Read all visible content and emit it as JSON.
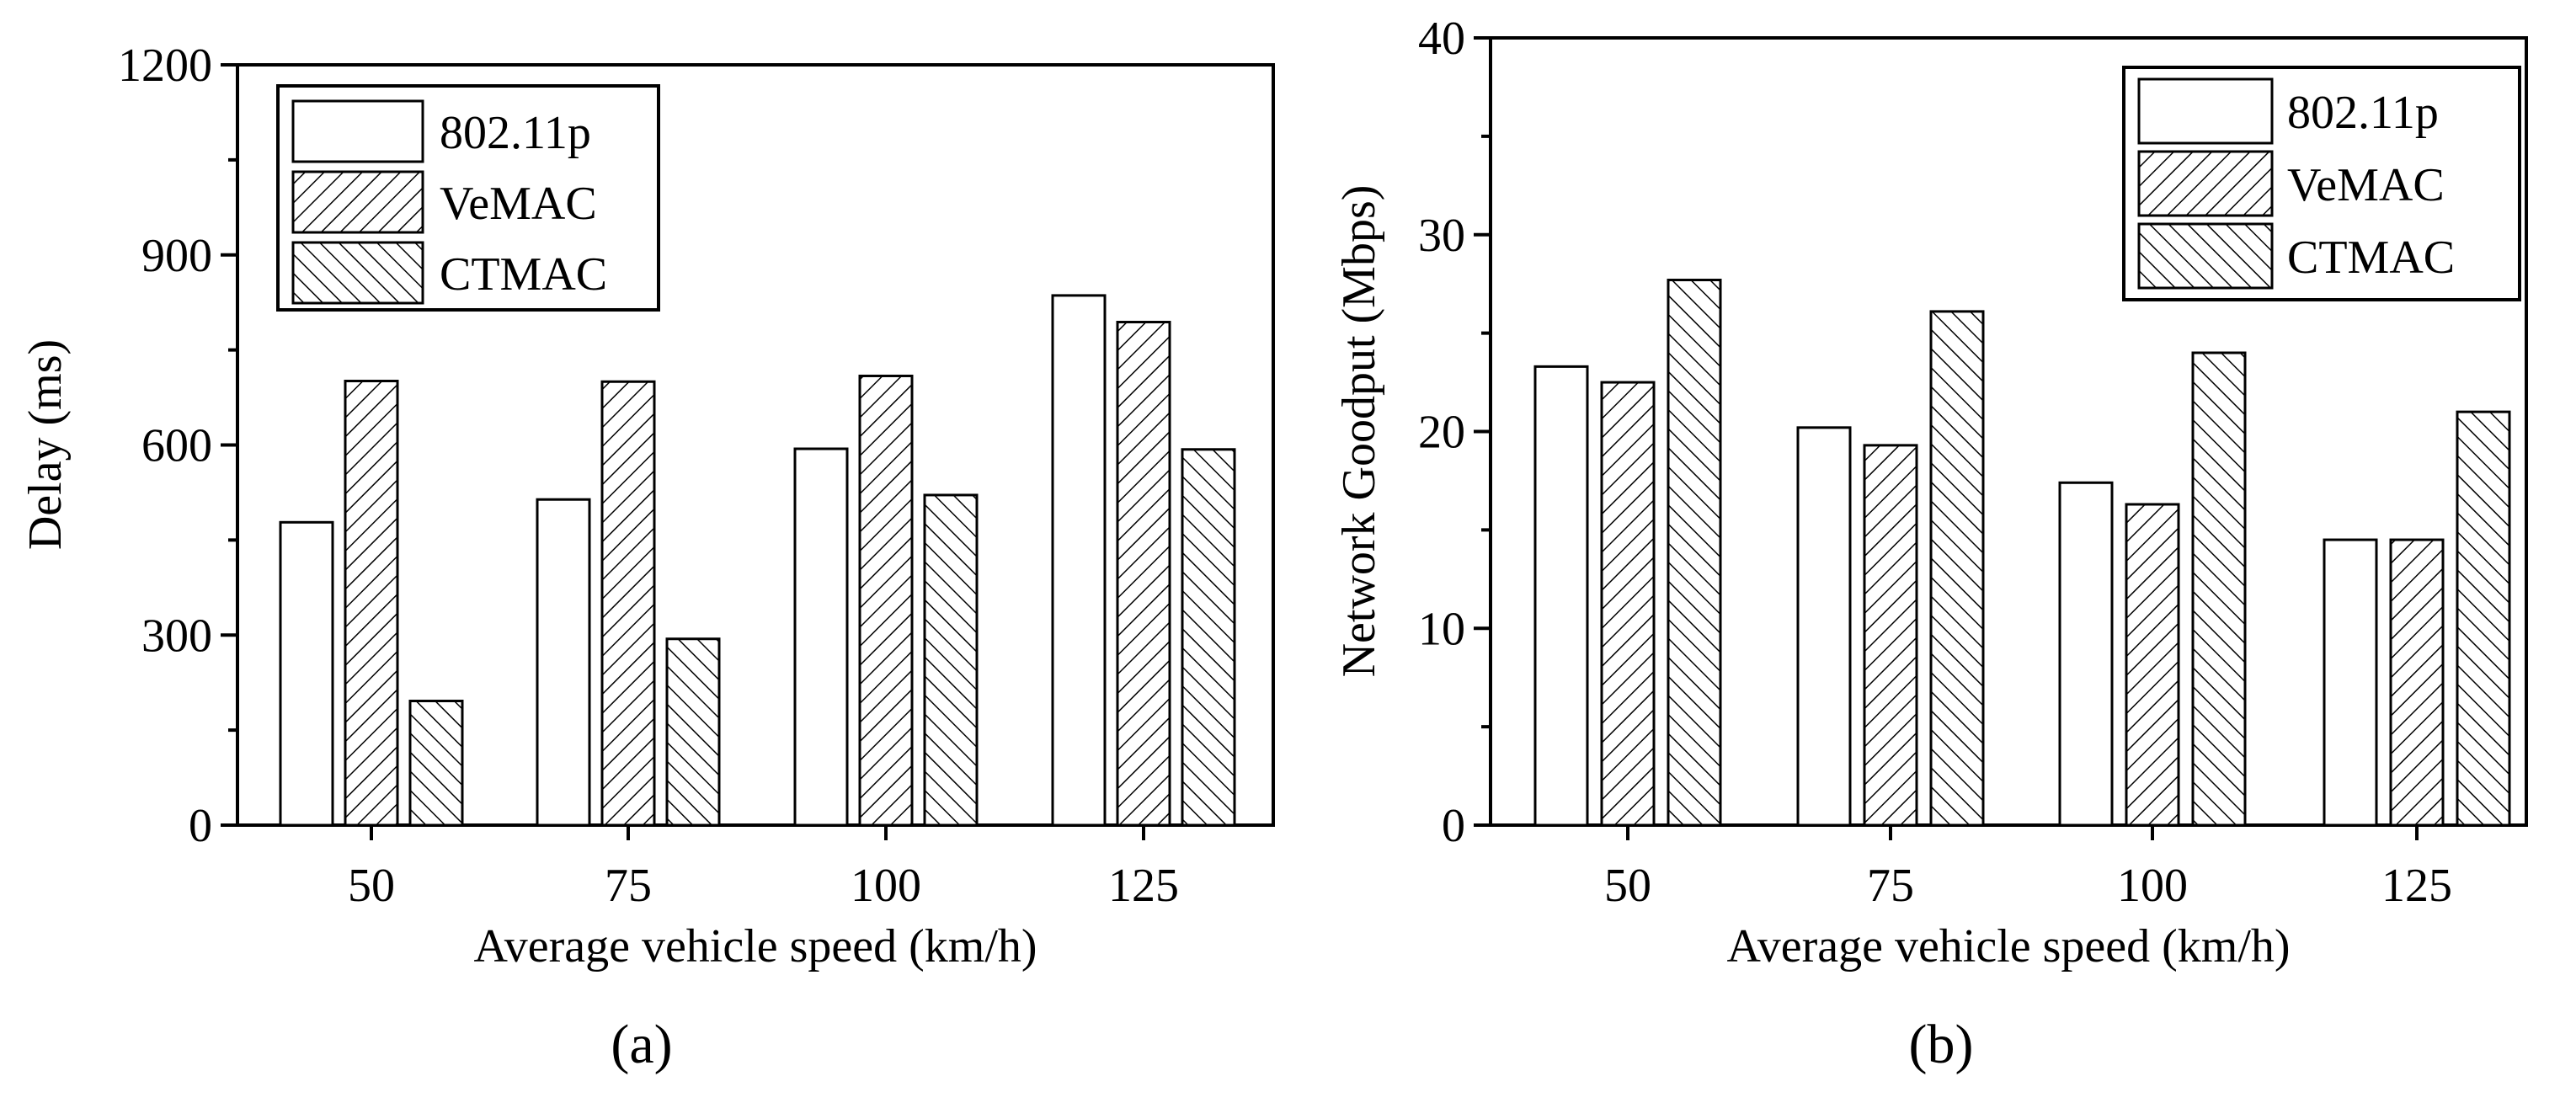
{
  "chart_data": [
    {
      "panel_label": "(a)",
      "type": "bar",
      "title": "",
      "xlabel": "Average vehicle speed (km/h)",
      "ylabel": "Delay (ms)",
      "categories": [
        "50",
        "75",
        "100",
        "125"
      ],
      "ylim": [
        0,
        1200
      ],
      "yticks": [
        0,
        300,
        600,
        900,
        1200
      ],
      "legend_position": "top-left",
      "series": [
        {
          "name": "802.11p",
          "pattern": "none",
          "values": [
            478,
            514,
            594,
            836
          ]
        },
        {
          "name": "VeMAC",
          "pattern": "forward-hatch",
          "values": [
            701,
            700,
            709,
            794
          ]
        },
        {
          "name": "CTMAC",
          "pattern": "back-hatch",
          "values": [
            196,
            294,
            521,
            593
          ]
        }
      ]
    },
    {
      "panel_label": "(b)",
      "type": "bar",
      "title": "",
      "xlabel": "Average vehicle speed (km/h)",
      "ylabel": "Network Goodput (Mbps)",
      "categories": [
        "50",
        "75",
        "100",
        "125"
      ],
      "ylim": [
        0,
        40
      ],
      "yticks": [
        0,
        10,
        20,
        30,
        40
      ],
      "legend_position": "top-right",
      "series": [
        {
          "name": "802.11p",
          "pattern": "none",
          "values": [
            23.3,
            20.2,
            17.4,
            14.5
          ]
        },
        {
          "name": "VeMAC",
          "pattern": "forward-hatch",
          "values": [
            22.5,
            19.3,
            16.3,
            14.5
          ]
        },
        {
          "name": "CTMAC",
          "pattern": "back-hatch",
          "values": [
            27.7,
            26.1,
            24.0,
            21.0
          ]
        }
      ]
    }
  ]
}
